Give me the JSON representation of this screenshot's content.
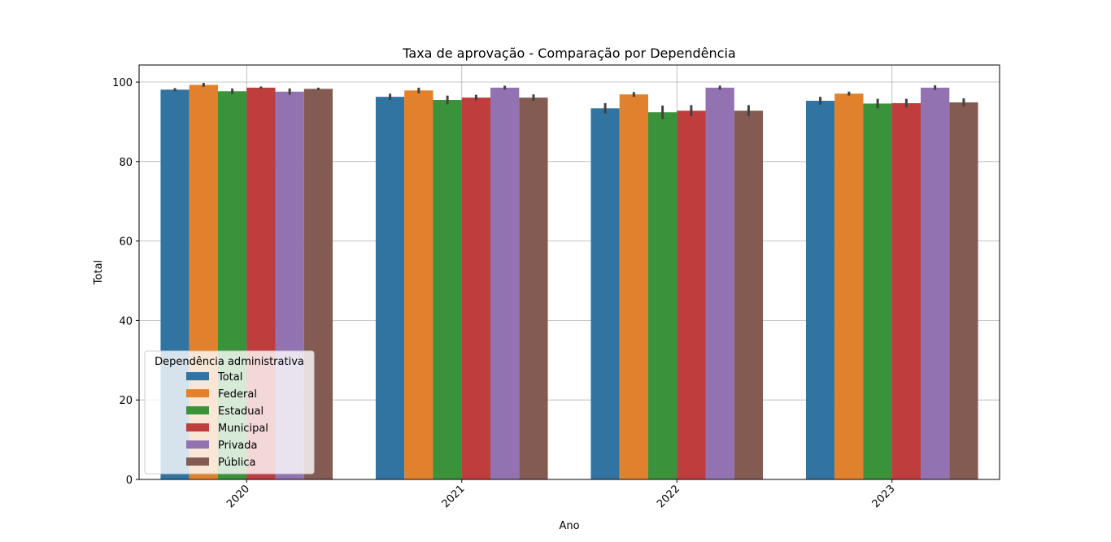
{
  "chart_data": {
    "type": "bar",
    "title": "Taxa de aprovação - Comparação por Dependência",
    "xlabel": "Ano",
    "ylabel": "Total",
    "categories": [
      "2020",
      "2021",
      "2022",
      "2023"
    ],
    "ylim": [
      0,
      104.3
    ],
    "yticks": [
      "0",
      "20",
      "40",
      "60",
      "80",
      "100"
    ],
    "grid": true,
    "legend": {
      "title": "Dependência administrativa",
      "placement": "lower-left"
    },
    "series": [
      {
        "name": "Total",
        "color": "#3274a1",
        "values": [
          98.1,
          96.3,
          93.4,
          95.3
        ],
        "errors": [
          0.4,
          0.8,
          1.3,
          1.0
        ]
      },
      {
        "name": "Federal",
        "color": "#e1812c",
        "values": [
          99.3,
          97.9,
          96.9,
          97.1
        ],
        "errors": [
          0.5,
          0.7,
          0.6,
          0.5
        ]
      },
      {
        "name": "Estadual",
        "color": "#3a923a",
        "values": [
          97.7,
          95.5,
          92.4,
          94.6
        ],
        "errors": [
          0.7,
          1.1,
          1.7,
          1.2
        ]
      },
      {
        "name": "Municipal",
        "color": "#c03d3e",
        "values": [
          98.6,
          96.1,
          92.8,
          94.7
        ],
        "errors": [
          0.3,
          0.7,
          1.4,
          1.1
        ]
      },
      {
        "name": "Privada",
        "color": "#9372b2",
        "values": [
          97.6,
          98.6,
          98.6,
          98.6
        ],
        "errors": [
          0.8,
          0.5,
          0.5,
          0.6
        ]
      },
      {
        "name": "Pública",
        "color": "#845b53",
        "values": [
          98.3,
          96.1,
          92.8,
          94.9
        ],
        "errors": [
          0.3,
          0.8,
          1.4,
          1.0
        ]
      }
    ]
  }
}
